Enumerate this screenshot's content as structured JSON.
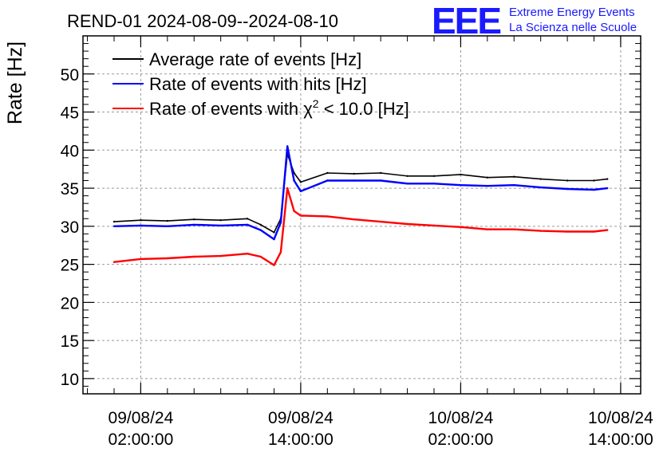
{
  "header": {
    "title": "REND-01 2024-08-09--2024-08-10",
    "logo_text": "EEE",
    "logo_line1": "Extreme Energy Events",
    "logo_line2": "La Scienza nelle Scuole",
    "logo_color": "#1a1aff"
  },
  "chart_data": {
    "type": "line",
    "title": "REND-01 2024-08-09--2024-08-10",
    "ylabel": "Rate [Hz]",
    "xlabel": "",
    "ylim": [
      8,
      55
    ],
    "yticks": [
      10,
      15,
      20,
      25,
      30,
      35,
      40,
      45,
      50
    ],
    "xlim": [
      "2024-08-08 21:40",
      "2024-08-10 15:30"
    ],
    "xticks": [
      {
        "value": "2024-08-09 02:00",
        "line1": "09/08/24",
        "line2": "02:00:00"
      },
      {
        "value": "2024-08-09 14:00",
        "line1": "09/08/24",
        "line2": "14:00:00"
      },
      {
        "value": "2024-08-10 02:00",
        "line1": "10/08/24",
        "line2": "02:00:00"
      },
      {
        "value": "2024-08-10 14:00",
        "line1": "10/08/24",
        "line2": "14:00:00"
      }
    ],
    "grid": true,
    "legend_position": "top-left",
    "x": [
      "2024-08-09 00:00",
      "2024-08-09 02:00",
      "2024-08-09 04:00",
      "2024-08-09 06:00",
      "2024-08-09 08:00",
      "2024-08-09 10:00",
      "2024-08-09 11:00",
      "2024-08-09 12:00",
      "2024-08-09 12:30",
      "2024-08-09 13:00",
      "2024-08-09 13:30",
      "2024-08-09 14:00",
      "2024-08-09 16:00",
      "2024-08-09 18:00",
      "2024-08-09 20:00",
      "2024-08-09 22:00",
      "2024-08-10 00:00",
      "2024-08-10 02:00",
      "2024-08-10 04:00",
      "2024-08-10 06:00",
      "2024-08-10 08:00",
      "2024-08-10 10:00",
      "2024-08-10 12:00",
      "2024-08-10 13:00"
    ],
    "series": [
      {
        "name": "Average rate of events [Hz]",
        "color": "#000000",
        "values": [
          30.6,
          30.8,
          30.7,
          30.9,
          30.8,
          31.0,
          30.2,
          29.2,
          31.0,
          39.5,
          37.0,
          35.8,
          37.0,
          36.9,
          37.0,
          36.6,
          36.6,
          36.8,
          36.4,
          36.5,
          36.2,
          36.0,
          36.0,
          36.2
        ]
      },
      {
        "name": "Rate of events with hits [Hz]",
        "color": "#0000ff",
        "values": [
          30.0,
          30.1,
          30.0,
          30.2,
          30.1,
          30.2,
          29.5,
          28.3,
          30.5,
          40.5,
          36.0,
          34.6,
          36.0,
          36.0,
          36.0,
          35.6,
          35.6,
          35.4,
          35.3,
          35.4,
          35.1,
          34.9,
          34.8,
          35.0
        ]
      },
      {
        "name": "Rate of events with χ² < 10.0 [Hz]",
        "legend_prefix": "Rate of events with ",
        "legend_chi": "χ",
        "legend_sup": "2",
        "legend_suffix": " < 10.0 [Hz]",
        "color": "#ff0000",
        "values": [
          25.3,
          25.7,
          25.8,
          26.0,
          26.1,
          26.4,
          26.0,
          24.9,
          26.6,
          35.0,
          32.0,
          31.4,
          31.3,
          30.9,
          30.6,
          30.3,
          30.1,
          29.9,
          29.6,
          29.6,
          29.4,
          29.3,
          29.3,
          29.5
        ]
      }
    ]
  }
}
